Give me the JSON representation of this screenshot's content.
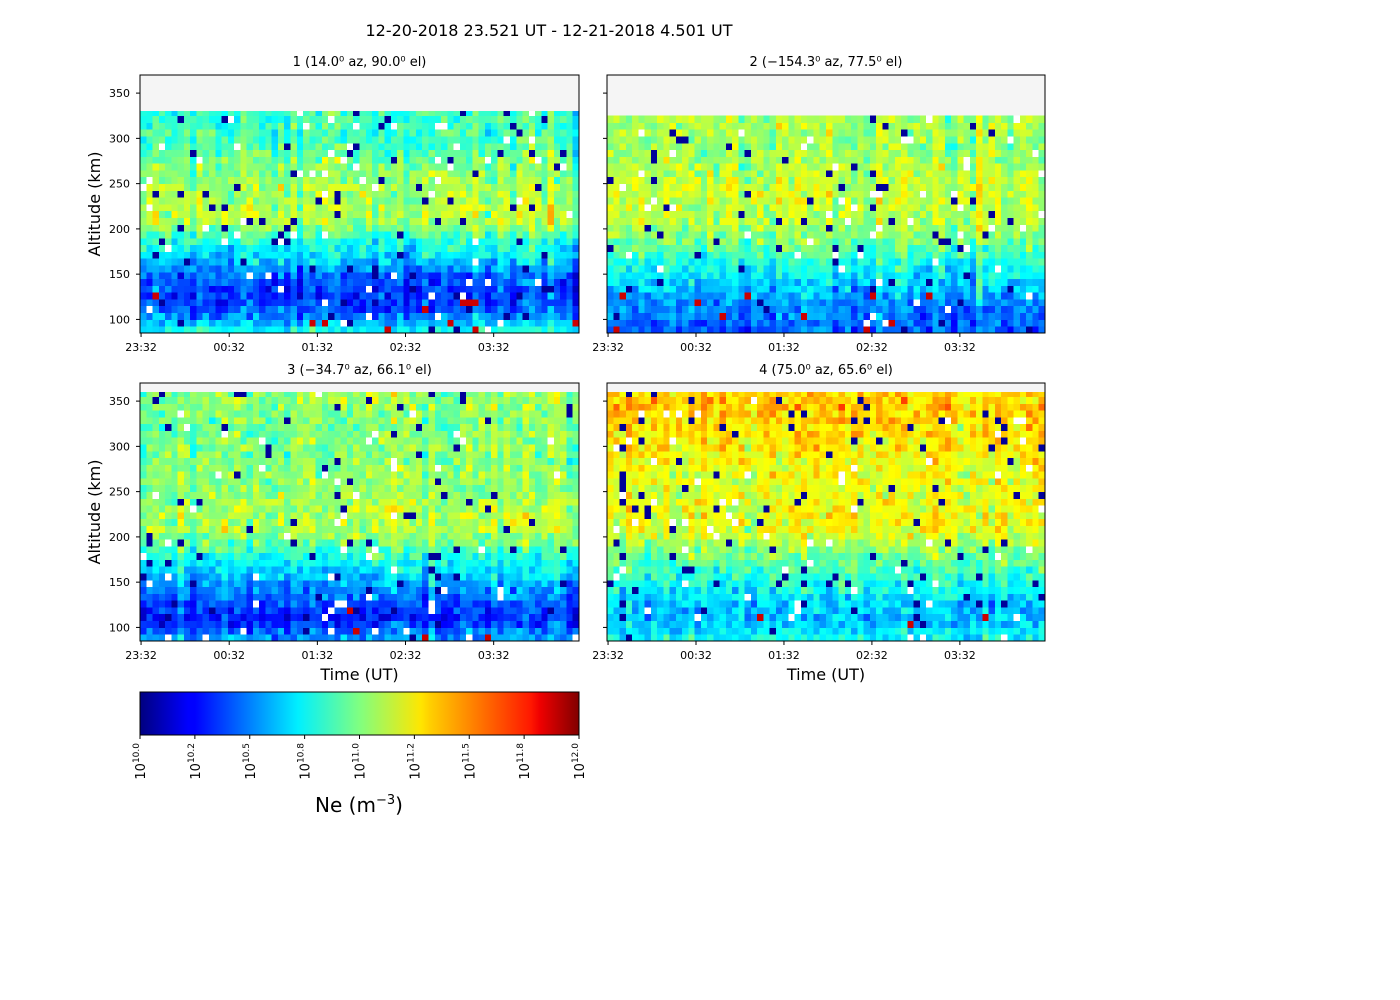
{
  "figure": {
    "suptitle": "12-20-2018 23.521 UT - 12-21-2018 4.501 UT"
  },
  "chart_data": {
    "type": "heatmap",
    "suptitle": "12-20-2018 23.521 UT - 12-21-2018 4.501 UT",
    "colormap": "jet",
    "x_tick_labels": [
      "23:32",
      "00:32",
      "01:32",
      "02:32",
      "03:32"
    ],
    "x_tick_times_hours": [
      23.533,
      24.533,
      25.533,
      26.533,
      27.533
    ],
    "x_range_hours": [
      23.521,
      28.501
    ],
    "y_ticks": [
      100,
      150,
      200,
      250,
      300,
      350
    ],
    "y_range_km": [
      85,
      370
    ],
    "xlabel": "Time (UT)",
    "ylabel": "Altitude (km)",
    "colorbar": {
      "label": "Ne (m⁻³)",
      "scale": "log10",
      "range": [
        10.0,
        12.0
      ],
      "tick_exponents": [
        "10.0",
        "10.2",
        "10.5",
        "10.8",
        "11.0",
        "11.2",
        "11.5",
        "11.8",
        "12.0"
      ],
      "tick_values": [
        10.0,
        10.25,
        10.5,
        10.75,
        11.0,
        11.25,
        11.5,
        11.75,
        12.0
      ]
    },
    "panels": [
      {
        "title": "1 (14.0⁰ az,  90.0⁰ el)",
        "beam": 1,
        "azimuth_deg": 14.0,
        "elevation_deg": 90.0,
        "data_top_km": 330,
        "profile_log10Ne": [
          [
            90,
            10.75
          ],
          [
            110,
            10.4
          ],
          [
            130,
            10.35
          ],
          [
            150,
            10.45
          ],
          [
            170,
            10.7
          ],
          [
            190,
            10.85
          ],
          [
            210,
            11.1
          ],
          [
            230,
            11.1
          ],
          [
            250,
            11.05
          ],
          [
            270,
            11.0
          ],
          [
            290,
            10.9
          ],
          [
            320,
            10.85
          ]
        ]
      },
      {
        "title": "2 (−154.3⁰ az,  77.5⁰ el)",
        "beam": 2,
        "azimuth_deg": -154.3,
        "elevation_deg": 77.5,
        "data_top_km": 325,
        "profile_log10Ne": [
          [
            90,
            10.45
          ],
          [
            110,
            10.5
          ],
          [
            130,
            10.6
          ],
          [
            150,
            10.75
          ],
          [
            170,
            10.85
          ],
          [
            190,
            11.0
          ],
          [
            210,
            11.1
          ],
          [
            230,
            11.15
          ],
          [
            250,
            11.15
          ],
          [
            270,
            11.1
          ],
          [
            290,
            11.05
          ],
          [
            320,
            11.1
          ]
        ]
      },
      {
        "title": "3 (−34.7⁰ az,  66.1⁰ el)",
        "beam": 3,
        "azimuth_deg": -34.7,
        "elevation_deg": 66.1,
        "data_top_km": 360,
        "profile_log10Ne": [
          [
            90,
            10.55
          ],
          [
            110,
            10.3
          ],
          [
            130,
            10.45
          ],
          [
            150,
            10.6
          ],
          [
            170,
            10.75
          ],
          [
            190,
            10.95
          ],
          [
            210,
            11.1
          ],
          [
            230,
            11.1
          ],
          [
            250,
            11.05
          ],
          [
            270,
            11.05
          ],
          [
            290,
            11.0
          ],
          [
            320,
            11.0
          ],
          [
            350,
            11.05
          ]
        ]
      },
      {
        "title": "4 (75.0⁰ az,  65.6⁰ el)",
        "beam": 4,
        "azimuth_deg": 75.0,
        "elevation_deg": 65.6,
        "data_top_km": 360,
        "profile_log10Ne": [
          [
            90,
            10.75
          ],
          [
            110,
            10.6
          ],
          [
            130,
            10.65
          ],
          [
            150,
            10.8
          ],
          [
            170,
            10.9
          ],
          [
            190,
            11.05
          ],
          [
            210,
            11.2
          ],
          [
            230,
            11.2
          ],
          [
            250,
            11.2
          ],
          [
            270,
            11.2
          ],
          [
            290,
            11.25
          ],
          [
            320,
            11.3
          ],
          [
            350,
            11.35
          ]
        ]
      }
    ]
  }
}
